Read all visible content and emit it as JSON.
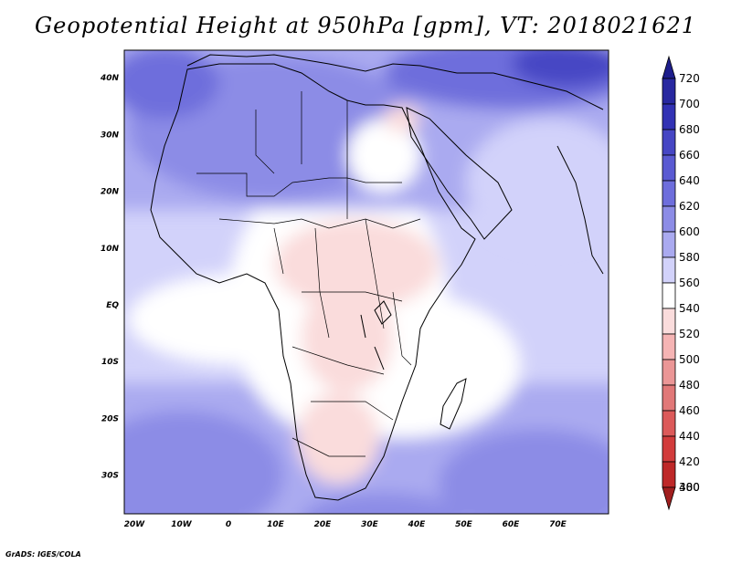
{
  "title": "Geopotential Height at 950hPa [gpm], VT: 2018021621",
  "credit": "GrADS: IGES/COLA",
  "map": {
    "lat_labels": [
      {
        "label": "40N",
        "lat": 40
      },
      {
        "label": "30N",
        "lat": 30
      },
      {
        "label": "20N",
        "lat": 20
      },
      {
        "label": "10N",
        "lat": 10
      },
      {
        "label": "EQ",
        "lat": 0
      },
      {
        "label": "10S",
        "lat": -10
      },
      {
        "label": "20S",
        "lat": -20
      },
      {
        "label": "30S",
        "lat": -30
      }
    ],
    "lon_labels": [
      {
        "label": "20W",
        "lon": -20
      },
      {
        "label": "10W",
        "lon": -10
      },
      {
        "label": "0",
        "lon": 0
      },
      {
        "label": "10E",
        "lon": 10
      },
      {
        "label": "20E",
        "lon": 20
      },
      {
        "label": "30E",
        "lon": 30
      },
      {
        "label": "40E",
        "lon": 40
      },
      {
        "label": "50E",
        "lon": 50
      },
      {
        "label": "60E",
        "lon": 60
      },
      {
        "label": "70E",
        "lon": 70
      }
    ]
  },
  "colorbar": {
    "labels": [
      "720",
      "700",
      "680",
      "660",
      "640",
      "620",
      "600",
      "580",
      "560",
      "540",
      "520",
      "500",
      "480",
      "460",
      "440",
      "420",
      "400",
      "380"
    ],
    "colors": [
      "#1e1e8c",
      "#2828a0",
      "#3232b4",
      "#4646c4",
      "#5a5ad2",
      "#6e6edc",
      "#8c8ce6",
      "#aaaaf0",
      "#d2d2fa",
      "#ffffff",
      "#fadcdc",
      "#f5b4b4",
      "#eb9696",
      "#e17878",
      "#dc5a5a",
      "#d23c3c",
      "#be2828",
      "#a01e1e"
    ]
  }
}
